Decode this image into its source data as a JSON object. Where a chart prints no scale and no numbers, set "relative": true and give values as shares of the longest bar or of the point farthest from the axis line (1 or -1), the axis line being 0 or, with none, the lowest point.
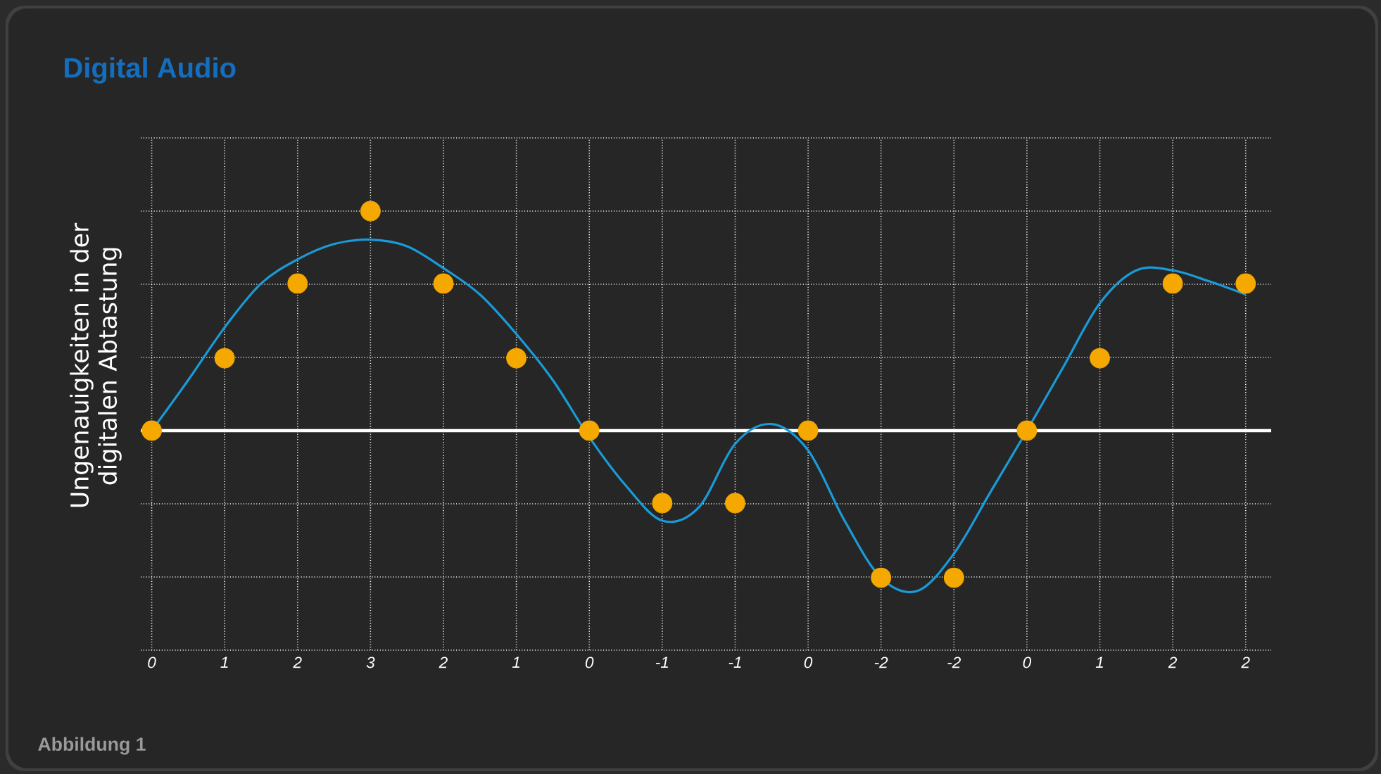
{
  "chart_data": {
    "type": "line",
    "title": "Digital Audio",
    "ylabel": "Ungenauigkeiten in der digitalen Abtastung",
    "categories": [
      "0",
      null,
      "1",
      null,
      "2",
      null,
      "3",
      null,
      "2",
      null,
      "1",
      null,
      "0",
      null,
      "-1",
      null,
      "-1",
      null,
      "0",
      null,
      "-2",
      null,
      "-2",
      null,
      "0",
      null,
      "1",
      null,
      "2",
      null,
      "2"
    ],
    "relative": true,
    "series": [
      {
        "color": "#1a9ad6",
        "line_style": "solid",
        "marker": "none",
        "values": [
          0,
          0.23,
          0.47,
          0.67,
          0.78,
          0.85,
          0.87,
          0.84,
          0.74,
          0.62,
          0.44,
          0.23,
          -0.03,
          -0.25,
          -0.41,
          -0.35,
          -0.06,
          0.03,
          -0.09,
          -0.41,
          -0.67,
          -0.73,
          -0.56,
          -0.28,
          0,
          0.29,
          0.58,
          0.73,
          0.73,
          0.68,
          0.62
        ]
      },
      {
        "type": "scatter",
        "color": "#f5a800",
        "marker": "circle",
        "values": [
          0,
          null,
          0.33,
          null,
          0.67,
          null,
          1,
          null,
          0.67,
          null,
          0.33,
          null,
          0,
          null,
          -0.33,
          null,
          -0.33,
          null,
          0,
          null,
          -0.67,
          null,
          -0.67,
          null,
          0,
          null,
          0.33,
          null,
          0.67,
          null,
          0.67
        ]
      }
    ],
    "tick_labels": "x",
    "grid": true,
    "annotations": [
      "Abbildung 1"
    ]
  }
}
